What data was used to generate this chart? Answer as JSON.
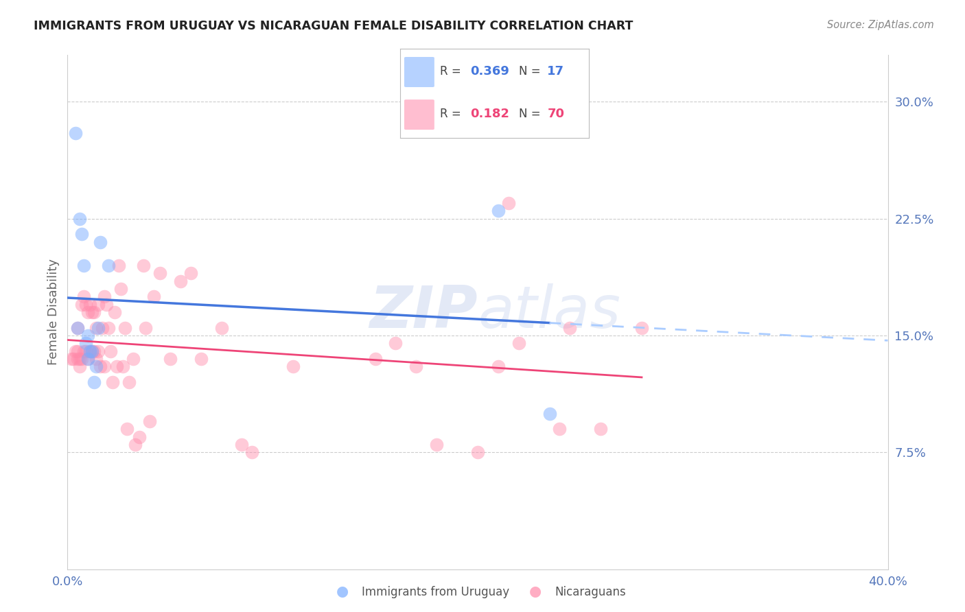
{
  "title": "IMMIGRANTS FROM URUGUAY VS NICARAGUAN FEMALE DISABILITY CORRELATION CHART",
  "source": "Source: ZipAtlas.com",
  "ylabel": "Female Disability",
  "right_yticks": [
    "30.0%",
    "22.5%",
    "15.0%",
    "7.5%"
  ],
  "right_ytick_vals": [
    0.3,
    0.225,
    0.15,
    0.075
  ],
  "xlim": [
    0.0,
    0.4
  ],
  "ylim": [
    0.0,
    0.33
  ],
  "color_uruguay": "#7aadff",
  "color_nicaragua": "#ff8aaa",
  "color_line_uruguay": "#4477dd",
  "color_line_nicaragua": "#ee4477",
  "color_dashed_ext": "#aaccff",
  "background": "#ffffff",
  "grid_color": "#cccccc",
  "title_color": "#222222",
  "axis_label_color": "#5577bb",
  "uruguay_x": [
    0.004,
    0.005,
    0.006,
    0.007,
    0.008,
    0.009,
    0.01,
    0.01,
    0.011,
    0.012,
    0.013,
    0.014,
    0.015,
    0.016,
    0.02,
    0.21,
    0.235
  ],
  "uruguay_y": [
    0.28,
    0.155,
    0.225,
    0.215,
    0.195,
    0.145,
    0.15,
    0.135,
    0.14,
    0.14,
    0.12,
    0.13,
    0.155,
    0.21,
    0.195,
    0.23,
    0.1
  ],
  "nicaragua_x": [
    0.002,
    0.003,
    0.004,
    0.005,
    0.005,
    0.005,
    0.006,
    0.006,
    0.007,
    0.007,
    0.008,
    0.008,
    0.009,
    0.009,
    0.01,
    0.01,
    0.011,
    0.011,
    0.012,
    0.012,
    0.013,
    0.013,
    0.014,
    0.014,
    0.015,
    0.015,
    0.016,
    0.017,
    0.018,
    0.018,
    0.019,
    0.02,
    0.021,
    0.022,
    0.023,
    0.024,
    0.025,
    0.026,
    0.027,
    0.028,
    0.029,
    0.03,
    0.032,
    0.033,
    0.035,
    0.037,
    0.038,
    0.04,
    0.042,
    0.045,
    0.05,
    0.055,
    0.06,
    0.065,
    0.075,
    0.085,
    0.09,
    0.11,
    0.15,
    0.16,
    0.17,
    0.18,
    0.2,
    0.21,
    0.215,
    0.22,
    0.24,
    0.245,
    0.26,
    0.28
  ],
  "nicaragua_y": [
    0.135,
    0.135,
    0.14,
    0.135,
    0.14,
    0.155,
    0.13,
    0.135,
    0.135,
    0.17,
    0.14,
    0.175,
    0.14,
    0.17,
    0.135,
    0.165,
    0.14,
    0.17,
    0.14,
    0.165,
    0.14,
    0.165,
    0.135,
    0.155,
    0.14,
    0.17,
    0.13,
    0.155,
    0.13,
    0.175,
    0.17,
    0.155,
    0.14,
    0.12,
    0.165,
    0.13,
    0.195,
    0.18,
    0.13,
    0.155,
    0.09,
    0.12,
    0.135,
    0.08,
    0.085,
    0.195,
    0.155,
    0.095,
    0.175,
    0.19,
    0.135,
    0.185,
    0.19,
    0.135,
    0.155,
    0.08,
    0.075,
    0.13,
    0.135,
    0.145,
    0.13,
    0.08,
    0.075,
    0.13,
    0.235,
    0.145,
    0.09,
    0.155,
    0.09,
    0.155
  ]
}
